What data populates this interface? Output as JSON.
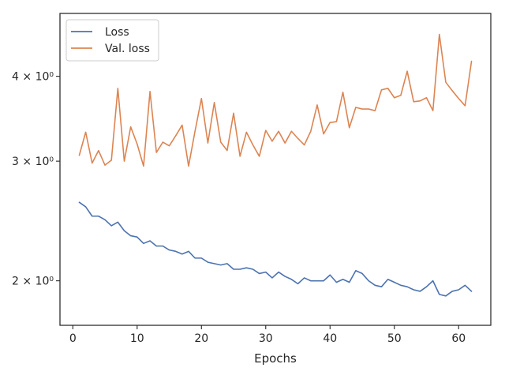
{
  "chart_data": {
    "type": "line",
    "title": "",
    "xlabel": "Epochs",
    "ylabel": "",
    "xlim": [
      -2,
      65
    ],
    "ylim": [
      1.72,
      4.95
    ],
    "y_scale": "log",
    "grid": false,
    "legend_position": "top-left",
    "x_ticks": [
      0,
      10,
      20,
      30,
      40,
      50,
      60
    ],
    "x_tick_labels": [
      "0",
      "10",
      "20",
      "30",
      "40",
      "50",
      "60"
    ],
    "y_ticks": [
      2,
      3,
      4
    ],
    "y_tick_labels": [
      "2 × 10⁰",
      "3 × 10⁰",
      "4 × 10⁰"
    ],
    "x": [
      1,
      2,
      3,
      4,
      5,
      6,
      7,
      8,
      9,
      10,
      11,
      12,
      13,
      14,
      15,
      16,
      17,
      18,
      19,
      20,
      21,
      22,
      23,
      24,
      25,
      26,
      27,
      28,
      29,
      30,
      31,
      32,
      33,
      34,
      35,
      36,
      37,
      38,
      39,
      40,
      41,
      42,
      43,
      44,
      45,
      46,
      47,
      48,
      49,
      50,
      51,
      52,
      53,
      54,
      55,
      56,
      57,
      58,
      59,
      60,
      61,
      62
    ],
    "series": [
      {
        "name": "Loss",
        "color": "#4c72b0",
        "values": [
          2.61,
          2.57,
          2.49,
          2.49,
          2.46,
          2.41,
          2.44,
          2.37,
          2.33,
          2.32,
          2.27,
          2.29,
          2.25,
          2.25,
          2.22,
          2.21,
          2.19,
          2.21,
          2.16,
          2.16,
          2.13,
          2.12,
          2.11,
          2.12,
          2.08,
          2.08,
          2.09,
          2.08,
          2.05,
          2.06,
          2.02,
          2.06,
          2.03,
          2.01,
          1.98,
          2.02,
          2.0,
          2.0,
          2.0,
          2.04,
          1.99,
          2.01,
          1.99,
          2.07,
          2.05,
          2.0,
          1.97,
          1.96,
          2.01,
          1.99,
          1.97,
          1.96,
          1.94,
          1.93,
          1.96,
          2.0,
          1.91,
          1.9,
          1.93,
          1.94,
          1.97,
          1.93
        ]
      },
      {
        "name": "Val. loss",
        "color": "#dd8452",
        "values": [
          3.06,
          3.31,
          2.98,
          3.11,
          2.96,
          3.01,
          3.84,
          3.0,
          3.37,
          3.18,
          2.95,
          3.8,
          3.09,
          3.2,
          3.16,
          3.27,
          3.39,
          2.95,
          3.32,
          3.71,
          3.19,
          3.66,
          3.2,
          3.11,
          3.53,
          3.05,
          3.31,
          3.17,
          3.05,
          3.33,
          3.21,
          3.32,
          3.19,
          3.32,
          3.24,
          3.17,
          3.32,
          3.63,
          3.29,
          3.42,
          3.43,
          3.79,
          3.36,
          3.6,
          3.58,
          3.58,
          3.56,
          3.82,
          3.84,
          3.72,
          3.75,
          4.07,
          3.67,
          3.68,
          3.72,
          3.56,
          4.61,
          3.92,
          3.81,
          3.71,
          3.62,
          4.21
        ]
      }
    ]
  }
}
